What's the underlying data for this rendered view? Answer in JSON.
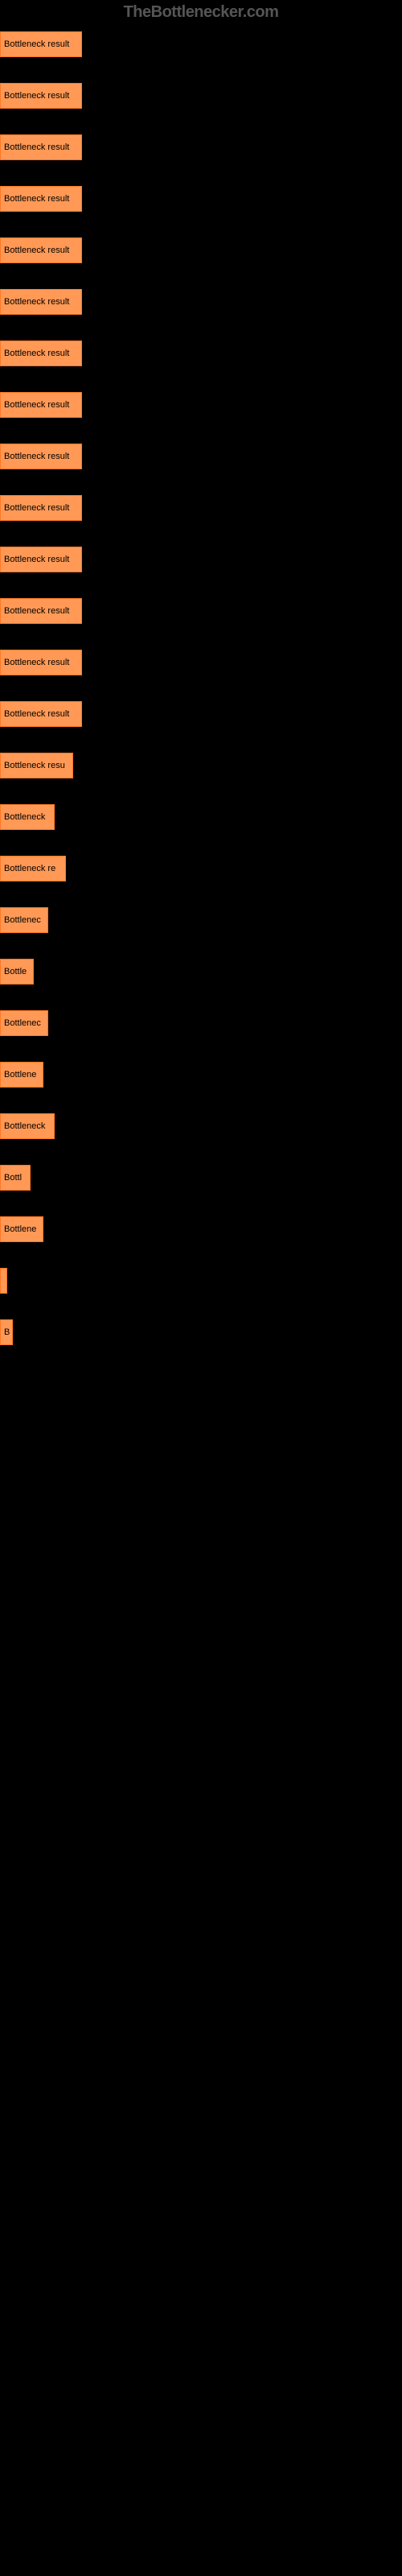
{
  "logo": "TheBottlenecker.com",
  "chart": {
    "type": "bar",
    "orientation": "horizontal",
    "bar_color": "#ff9955",
    "bar_border_color": "#ff7722",
    "background_color": "#000000",
    "label_color": "#000000",
    "label_fontsize": 11,
    "bars": [
      {
        "label": "Bottleneck result",
        "width": 96
      },
      {
        "label": "Bottleneck result",
        "width": 96
      },
      {
        "label": "Bottleneck result",
        "width": 96
      },
      {
        "label": "Bottleneck result",
        "width": 96
      },
      {
        "label": "Bottleneck result",
        "width": 96
      },
      {
        "label": "Bottleneck result",
        "width": 96
      },
      {
        "label": "Bottleneck result",
        "width": 96
      },
      {
        "label": "Bottleneck result",
        "width": 96
      },
      {
        "label": "Bottleneck result",
        "width": 96
      },
      {
        "label": "Bottleneck result",
        "width": 96
      },
      {
        "label": "Bottleneck result",
        "width": 96
      },
      {
        "label": "Bottleneck result",
        "width": 96
      },
      {
        "label": "Bottleneck result",
        "width": 96
      },
      {
        "label": "Bottleneck result",
        "width": 96
      },
      {
        "label": "Bottleneck resu",
        "width": 85
      },
      {
        "label": "Bottleneck",
        "width": 62
      },
      {
        "label": "Bottleneck re",
        "width": 76
      },
      {
        "label": "Bottlenec",
        "width": 54
      },
      {
        "label": "Bottle",
        "width": 36
      },
      {
        "label": "Bottlenec",
        "width": 54
      },
      {
        "label": "Bottlene",
        "width": 48
      },
      {
        "label": "Bottleneck",
        "width": 62
      },
      {
        "label": "Bottl",
        "width": 32
      },
      {
        "label": "Bottlene",
        "width": 48
      },
      {
        "label": "",
        "width": 3
      },
      {
        "label": "",
        "width": 0
      },
      {
        "label": "",
        "width": 0
      },
      {
        "label": "",
        "width": 0
      },
      {
        "label": "B",
        "width": 10
      },
      {
        "label": "",
        "width": 0
      },
      {
        "label": "",
        "width": 0
      }
    ]
  }
}
